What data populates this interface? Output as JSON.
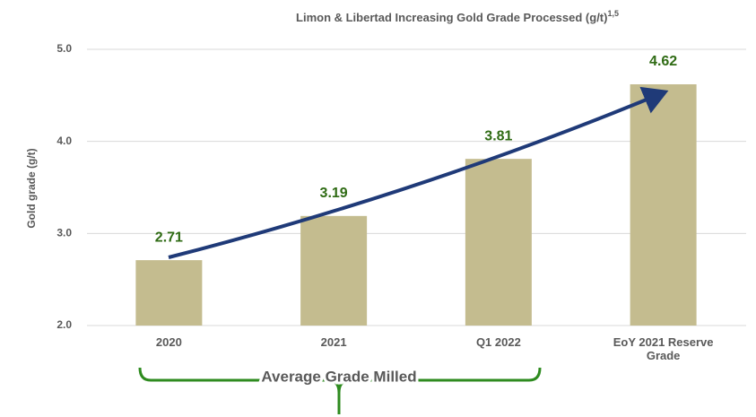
{
  "chart_data": {
    "type": "bar",
    "title": "Limon & Libertad Increasing Gold Grade Processed (g/t)",
    "title_superscript": "1,5",
    "ylabel": "Gold grade (g/t)",
    "categories": [
      "2020",
      "2021",
      "Q1 2022",
      "EoY 2021 Reserve Grade"
    ],
    "values": [
      2.71,
      3.19,
      3.81,
      4.62
    ],
    "color": "#c4bc8f",
    "label_color": "#2f6b14",
    "ylim": [
      2.0,
      5.0
    ],
    "yticks": [
      {
        "value": 2.0,
        "label": "2.0"
      },
      {
        "value": 3.0,
        "label": "3.0"
      },
      {
        "value": 4.0,
        "label": "4.0"
      },
      {
        "value": 5.0,
        "label": "5.0"
      }
    ],
    "grid": true,
    "annotation": "Average Grade Milled"
  }
}
